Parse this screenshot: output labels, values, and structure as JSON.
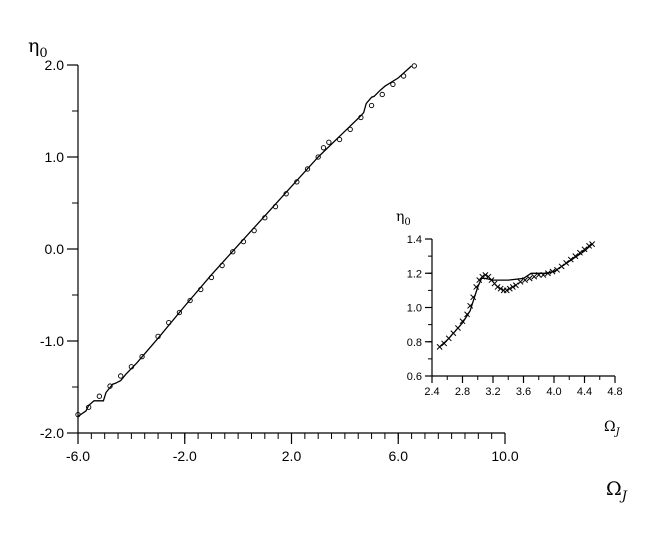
{
  "chart_data": [
    {
      "type": "line",
      "role": "main",
      "xlabel": {
        "base": "Ω",
        "sub": "J"
      },
      "ylabel": {
        "base": "η",
        "sub": "0"
      },
      "xlim": [
        -6.0,
        10.0
      ],
      "ylim": [
        -2.0,
        2.0
      ],
      "x_major_ticks": [
        -6.0,
        -2.0,
        2.0,
        6.0,
        10.0
      ],
      "x_tick_labels": [
        "-6.0",
        "-2.0",
        "2.0",
        "6.0",
        "10.0"
      ],
      "x_minor_step": 0.5,
      "y_major_ticks": [
        -2.0,
        -1.0,
        0.0,
        1.0,
        2.0
      ],
      "y_tick_labels": [
        "-2.0",
        "-1.0",
        "0.0",
        "1.0",
        "2.0"
      ],
      "y_minor_step": 0.5,
      "grid": false,
      "series": [
        {
          "style": "solid-line",
          "x": [
            -6.0,
            -5.7,
            -5.6,
            -5.4,
            -5.05,
            -4.95,
            -4.7,
            -4.6,
            -4.4,
            -4.2,
            -3.8,
            -3.0,
            -2.0,
            -1.0,
            0.0,
            1.0,
            2.0,
            3.0,
            4.0,
            4.5,
            4.7,
            4.8,
            5.0,
            5.1,
            5.3,
            5.5,
            6.0,
            6.5
          ],
          "y": [
            -1.82,
            -1.76,
            -1.7,
            -1.65,
            -1.65,
            -1.56,
            -1.47,
            -1.46,
            -1.43,
            -1.36,
            -1.24,
            -0.97,
            -0.62,
            -0.28,
            0.04,
            0.36,
            0.68,
            1.0,
            1.28,
            1.42,
            1.48,
            1.58,
            1.65,
            1.66,
            1.72,
            1.77,
            1.86,
            1.99
          ]
        },
        {
          "style": "open-circle-markers",
          "x": [
            -6.0,
            -5.6,
            -5.2,
            -4.8,
            -4.4,
            -4.0,
            -3.6,
            -3.0,
            -2.6,
            -2.2,
            -1.8,
            -1.4,
            -1.0,
            -0.6,
            -0.2,
            0.2,
            0.6,
            1.0,
            1.4,
            1.8,
            2.2,
            2.6,
            3.0,
            3.2,
            3.4,
            3.8,
            4.2,
            4.6,
            5.0,
            5.4,
            5.8,
            6.2,
            6.6
          ],
          "y": [
            -1.8,
            -1.72,
            -1.6,
            -1.49,
            -1.38,
            -1.28,
            -1.17,
            -0.95,
            -0.8,
            -0.69,
            -0.56,
            -0.44,
            -0.31,
            -0.18,
            -0.03,
            0.08,
            0.2,
            0.34,
            0.46,
            0.6,
            0.73,
            0.87,
            1.0,
            1.1,
            1.16,
            1.19,
            1.3,
            1.43,
            1.56,
            1.68,
            1.79,
            1.88,
            1.99
          ]
        }
      ]
    },
    {
      "type": "line",
      "role": "inset",
      "xlabel": {
        "base": "Ω",
        "sub": "J"
      },
      "ylabel": {
        "base": "η",
        "sub": "0"
      },
      "xlim": [
        2.4,
        4.8
      ],
      "ylim": [
        0.6,
        1.4
      ],
      "x_major_ticks": [
        2.4,
        2.8,
        3.2,
        3.6,
        4.0,
        4.4,
        4.8
      ],
      "x_tick_labels": [
        "2.4",
        "2.8",
        "3.2",
        "3.6",
        "4.0",
        "4.4",
        "4.8"
      ],
      "x_minor_step": 0.2,
      "y_major_ticks": [
        0.6,
        0.8,
        1.0,
        1.2,
        1.4
      ],
      "y_tick_labels": [
        "0.6",
        "0.8",
        "1.0",
        "1.2",
        "1.4"
      ],
      "y_minor_step": 0.1,
      "grid": false,
      "series": [
        {
          "style": "solid-line",
          "x": [
            2.5,
            2.6,
            2.7,
            2.8,
            2.9,
            2.95,
            3.0,
            3.05,
            3.1,
            3.2,
            3.4,
            3.6,
            3.7,
            3.8,
            3.9,
            4.0,
            4.2,
            4.4,
            4.5
          ],
          "y": [
            0.77,
            0.81,
            0.86,
            0.91,
            0.98,
            1.05,
            1.12,
            1.17,
            1.17,
            1.16,
            1.16,
            1.17,
            1.2,
            1.2,
            1.2,
            1.21,
            1.27,
            1.33,
            1.37
          ]
        },
        {
          "style": "x-markers",
          "x": [
            2.5,
            2.56,
            2.62,
            2.68,
            2.74,
            2.8,
            2.86,
            2.9,
            2.94,
            2.98,
            3.02,
            3.06,
            3.1,
            3.14,
            3.18,
            3.22,
            3.26,
            3.3,
            3.34,
            3.38,
            3.42,
            3.46,
            3.5,
            3.56,
            3.62,
            3.68,
            3.74,
            3.8,
            3.86,
            3.92,
            3.98,
            4.04,
            4.1,
            4.16,
            4.22,
            4.28,
            4.34,
            4.4,
            4.46,
            4.5
          ],
          "y": [
            0.77,
            0.79,
            0.82,
            0.85,
            0.88,
            0.92,
            0.96,
            1.01,
            1.06,
            1.12,
            1.16,
            1.18,
            1.19,
            1.18,
            1.16,
            1.14,
            1.12,
            1.11,
            1.1,
            1.1,
            1.11,
            1.12,
            1.13,
            1.15,
            1.16,
            1.17,
            1.18,
            1.19,
            1.19,
            1.2,
            1.21,
            1.22,
            1.24,
            1.26,
            1.28,
            1.3,
            1.32,
            1.34,
            1.36,
            1.37
          ]
        }
      ]
    }
  ]
}
